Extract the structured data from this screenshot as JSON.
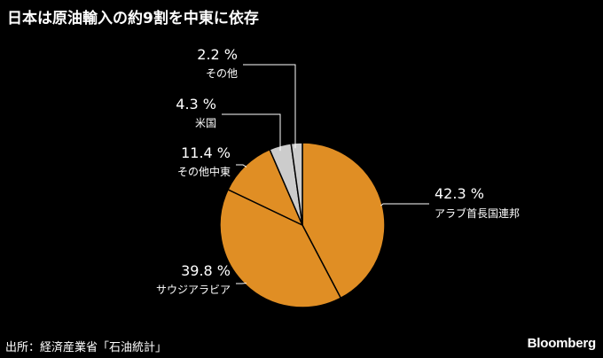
{
  "title": "日本は原油輸入の約9割を中東に依存",
  "source": "出所：経済産業省「石油統計」",
  "brand": "Bloomberg",
  "chart_data": {
    "type": "pie",
    "unit": "%",
    "slices": [
      {
        "name": "アラブ首長国連邦",
        "value": 42.3,
        "label": "42.3 %",
        "color": "#e08e24"
      },
      {
        "name": "サウジアラビア",
        "value": 39.8,
        "label": "39.8 %",
        "color": "#e08e24"
      },
      {
        "name": "その他中東",
        "value": 11.4,
        "label": "11.4 %",
        "color": "#e08e24"
      },
      {
        "name": "米国",
        "value": 4.3,
        "label": "4.3 %",
        "color": "#cccccc"
      },
      {
        "name": "その他",
        "value": 2.2,
        "label": "2.2 %",
        "color": "#cccccc"
      }
    ],
    "start": "12 o'clock",
    "direction": "clockwise",
    "colors": {
      "middle_east": "#e08e24",
      "other": "#cccccc",
      "background": "#000000",
      "separator": "#000000"
    }
  }
}
